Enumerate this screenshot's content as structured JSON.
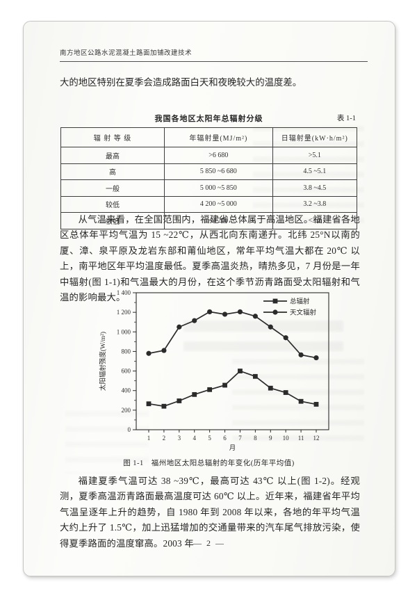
{
  "page": {
    "running_head": "南方地区公路水泥混凝土路面加铺改建技术",
    "page_number": "— 2 —"
  },
  "intro_line": "大的地区特别在夏季会造成路面白天和夜晚较大的温度差。",
  "table": {
    "title": "我国各地区太阳年总辐射分级",
    "label": "表 1-1",
    "headers": [
      "辐 射 等 级",
      "年辐射量(MJ/m²)",
      "日辐射量(kW·h/m²)"
    ],
    "rows": [
      [
        "最高",
        ">6 680",
        ">5.1"
      ],
      [
        "高",
        "5 850 ~6 680",
        "4.5 ~5.1"
      ],
      [
        "一般",
        "5 000 ~5 850",
        "3.8 ~4.5"
      ],
      [
        "较低",
        "4 200 ~5 000",
        "3.2 ~3.8"
      ],
      [
        "很低",
        "<4 200",
        "<3.2"
      ]
    ]
  },
  "paragraph1": "从气温来看，在全国范围内，福建省总体属于高温地区。福建省各地区总体年平均气温为 15 ~22℃，从西北向东南递升。北纬 25°N以南的厦、漳、泉平原及龙岩东部和莆仙地区，常年平均气温大都在 20℃ 以上，南平地区年平均温度最低。夏季高温炎热，晴热多见，7 月份是一年中辐射(图 1-1)和气温最大的月份，在这个季节沥青路面受太阳辐射和气温的影响最大。",
  "figure_caption": "图 1-1　福州地区太阳总辐射的年变化(历年平均值)",
  "chart_data": {
    "type": "line",
    "title": "福州地区太阳总辐射的年变化(历年平均值)",
    "x": [
      1,
      2,
      3,
      4,
      5,
      6,
      7,
      8,
      9,
      10,
      11,
      12
    ],
    "xlabel": "月",
    "ylabel": "太阳辐射强度(W/m²)",
    "ylim": [
      0,
      1400
    ],
    "grid": false,
    "legend_position": "top-right",
    "yticks": [
      {
        "v": 0,
        "label": "0"
      },
      {
        "v": 200,
        "label": "200"
      },
      {
        "v": 400,
        "label": "400"
      },
      {
        "v": 600,
        "label": "600"
      },
      {
        "v": 800,
        "label": "800"
      },
      {
        "v": 1000,
        "label": "1 000"
      },
      {
        "v": 1200,
        "label": "1 200"
      },
      {
        "v": 1400,
        "label": "1 400"
      }
    ],
    "series": [
      {
        "name": "总辐射",
        "marker": "square",
        "values": [
          265,
          240,
          295,
          360,
          410,
          455,
          600,
          545,
          425,
          380,
          290,
          260
        ]
      },
      {
        "name": "天文辐射",
        "marker": "circle",
        "values": [
          780,
          810,
          1050,
          1115,
          1205,
          1180,
          1205,
          1160,
          1050,
          940,
          765,
          735
        ]
      }
    ]
  },
  "paragraph2": "福建夏季气温可达 38 ~39℃，最高可达 43℃ 以上(图 1-2)。经观测，夏季高温沥青路面最高温度可达 60℃ 以上。近年来，福建省年平均气温呈逐年上升的趋势，自 1980 年到 2008 年以来，各地的年平均气温大约上升了 1.5℃，加上迅猛增加的交通量带来的汽车尾气排放污染，使得夏季路面的温度窜高。2003 年",
  "colors": {
    "ink": "#262626",
    "chart_line": "#2b2b2b",
    "page_bg": "#fafaf7",
    "page_border": "#c7c7c3"
  }
}
